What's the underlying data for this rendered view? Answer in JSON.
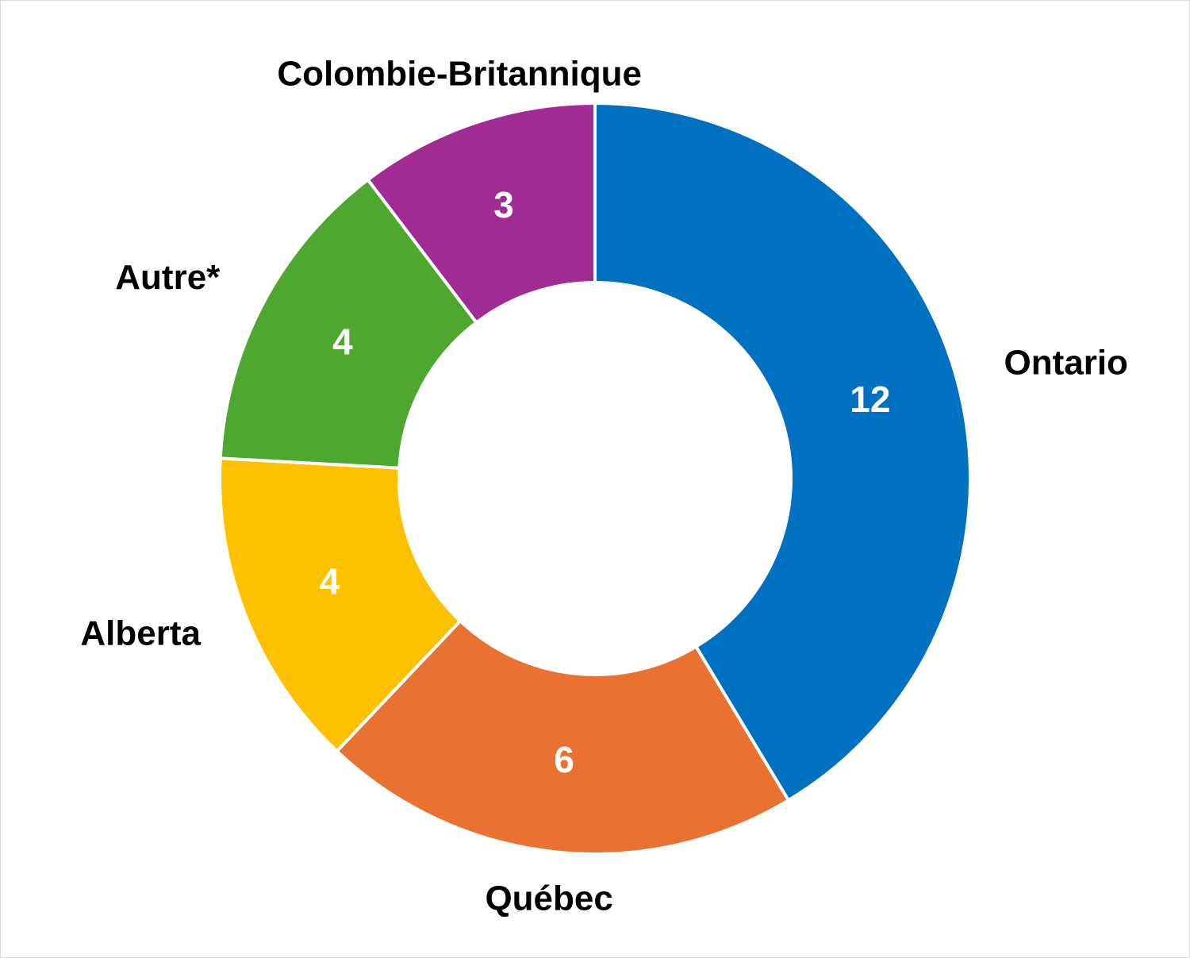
{
  "chart_data": {
    "type": "donut",
    "categories": [
      "Ontario",
      "Québec",
      "Alberta",
      "Autre*",
      "Colombie-Britannique"
    ],
    "values": [
      12,
      6,
      4,
      4,
      3
    ],
    "colors": [
      "#0070c0",
      "#e97132",
      "#ffc000",
      "#4ea72e",
      "#a02b93"
    ]
  }
}
